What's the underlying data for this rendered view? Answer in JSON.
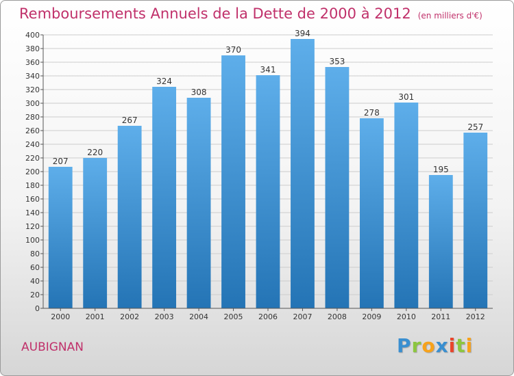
{
  "colors": {
    "title": "#c0306a",
    "bar_top": "#5eaeea",
    "bar_bottom": "#2474b5",
    "grid": "#cccccc",
    "axis": "#555555"
  },
  "footer": {
    "commune": "AUBIGNAN",
    "logo_letters": [
      {
        "char": "P",
        "color": "#3a8fd0"
      },
      {
        "char": "r",
        "color": "#8cc63f"
      },
      {
        "char": "o",
        "color": "#f7a21b"
      },
      {
        "char": "x",
        "color": "#3a8fd0"
      },
      {
        "char": "i",
        "color": "#e8452c"
      },
      {
        "char": "t",
        "color": "#8cc63f"
      },
      {
        "char": "i",
        "color": "#f7a21b"
      }
    ]
  },
  "chart_data": {
    "type": "bar",
    "title": "Remboursements Annuels de la Dette de 2000 à 2012",
    "subtitle": "(en milliers d'€)",
    "xlabel": "",
    "ylabel": "",
    "categories": [
      "2000",
      "2001",
      "2002",
      "2003",
      "2004",
      "2005",
      "2006",
      "2007",
      "2008",
      "2009",
      "2010",
      "2011",
      "2012"
    ],
    "values": [
      207,
      220,
      267,
      324,
      308,
      370,
      341,
      394,
      353,
      278,
      301,
      195,
      257
    ],
    "ylim": [
      0,
      400
    ],
    "ytick_step": 20,
    "grid": true,
    "legend": "none"
  }
}
